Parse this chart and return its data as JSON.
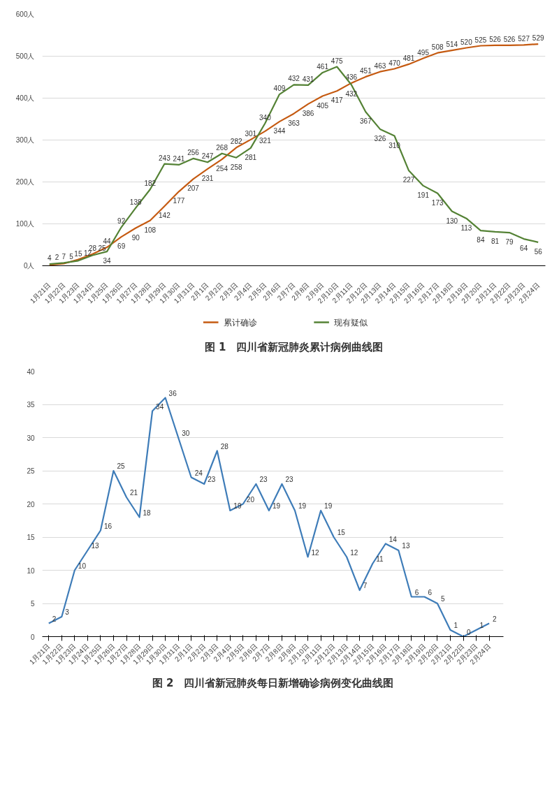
{
  "chart_data": [
    {
      "type": "line",
      "title": "图 1　四川省新冠肺炎累计病例曲线图",
      "categories": [
        "1月21日",
        "1月22日",
        "1月23日",
        "1月24日",
        "1月25日",
        "1月26日",
        "1月27日",
        "1月28日",
        "1月29日",
        "1月30日",
        "1月31日",
        "2月1日",
        "2月2日",
        "2月3日",
        "2月4日",
        "2月5日",
        "2月6日",
        "2月7日",
        "2月8日",
        "2月9日",
        "2月10日",
        "2月11日",
        "2月12日",
        "2月13日",
        "2月14日",
        "2月15日",
        "2月16日",
        "2月17日",
        "2月18日",
        "2月19日",
        "2月20日",
        "2月21日",
        "2月22日",
        "2月23日",
        "2月24日"
      ],
      "series": [
        {
          "name": "累计确诊",
          "color": "#c55a11",
          "values": [
            2,
            5,
            15,
            28,
            44,
            69,
            90,
            108,
            142,
            177,
            207,
            231,
            254,
            282,
            301,
            321,
            344,
            363,
            386,
            405,
            417,
            436,
            451,
            463,
            470,
            481,
            495,
            508,
            514,
            520,
            525,
            526,
            526,
            527,
            529
          ]
        },
        {
          "name": "现有疑似",
          "color": "#548235",
          "values": [
            4,
            7,
            12,
            25,
            34,
            92,
            138,
            182,
            243,
            241,
            256,
            247,
            268,
            258,
            281,
            340,
            409,
            432,
            431,
            461,
            475,
            432,
            367,
            326,
            310,
            227,
            191,
            173,
            130,
            113,
            84,
            81,
            79,
            64,
            56
          ]
        }
      ],
      "ylim": [
        0,
        600
      ],
      "yticks": [
        {
          "value": 0,
          "label": "0人"
        },
        {
          "value": 100,
          "label": "100人"
        },
        {
          "value": 200,
          "label": "200人"
        },
        {
          "value": 300,
          "label": "300人"
        },
        {
          "value": 400,
          "label": "400人"
        },
        {
          "value": 500,
          "label": "500人"
        },
        {
          "value": 600,
          "label": "600人"
        }
      ],
      "grid": "y",
      "legend": "bottom",
      "data_labels": true,
      "marker": "none"
    },
    {
      "type": "line",
      "title": "图 2　四川省新冠肺炎每日新增确诊病例变化曲线图",
      "categories": [
        "1月21日",
        "1月22日",
        "1月23日",
        "1月24日",
        "1月25日",
        "1月26日",
        "1月27日",
        "1月28日",
        "1月29日",
        "1月30日",
        "1月31日",
        "2月1日",
        "2月2日",
        "2月3日",
        "2月4日",
        "2月5日",
        "2月6日",
        "2月7日",
        "2月8日",
        "2月9日",
        "2月10日",
        "2月11日",
        "2月12日",
        "2月13日",
        "2月14日",
        "2月15日",
        "2月16日",
        "2月17日",
        "2月18日",
        "2月19日",
        "2月20日",
        "2月21日",
        "2月22日",
        "2月23日",
        "2月24日"
      ],
      "series": [
        {
          "color": "#3e7cb8",
          "values": [
            2,
            3,
            10,
            13,
            16,
            25,
            21,
            18,
            34,
            36,
            30,
            24,
            23,
            28,
            19,
            20,
            23,
            19,
            23,
            19,
            12,
            19,
            15,
            12,
            7,
            11,
            14,
            13,
            6,
            6,
            5,
            1,
            0,
            1,
            2
          ]
        }
      ],
      "ylim": [
        0,
        40
      ],
      "yticks": [
        0,
        5,
        10,
        15,
        20,
        25,
        30,
        35,
        40
      ],
      "grid": "y",
      "data_labels": true,
      "marker": "none"
    }
  ]
}
